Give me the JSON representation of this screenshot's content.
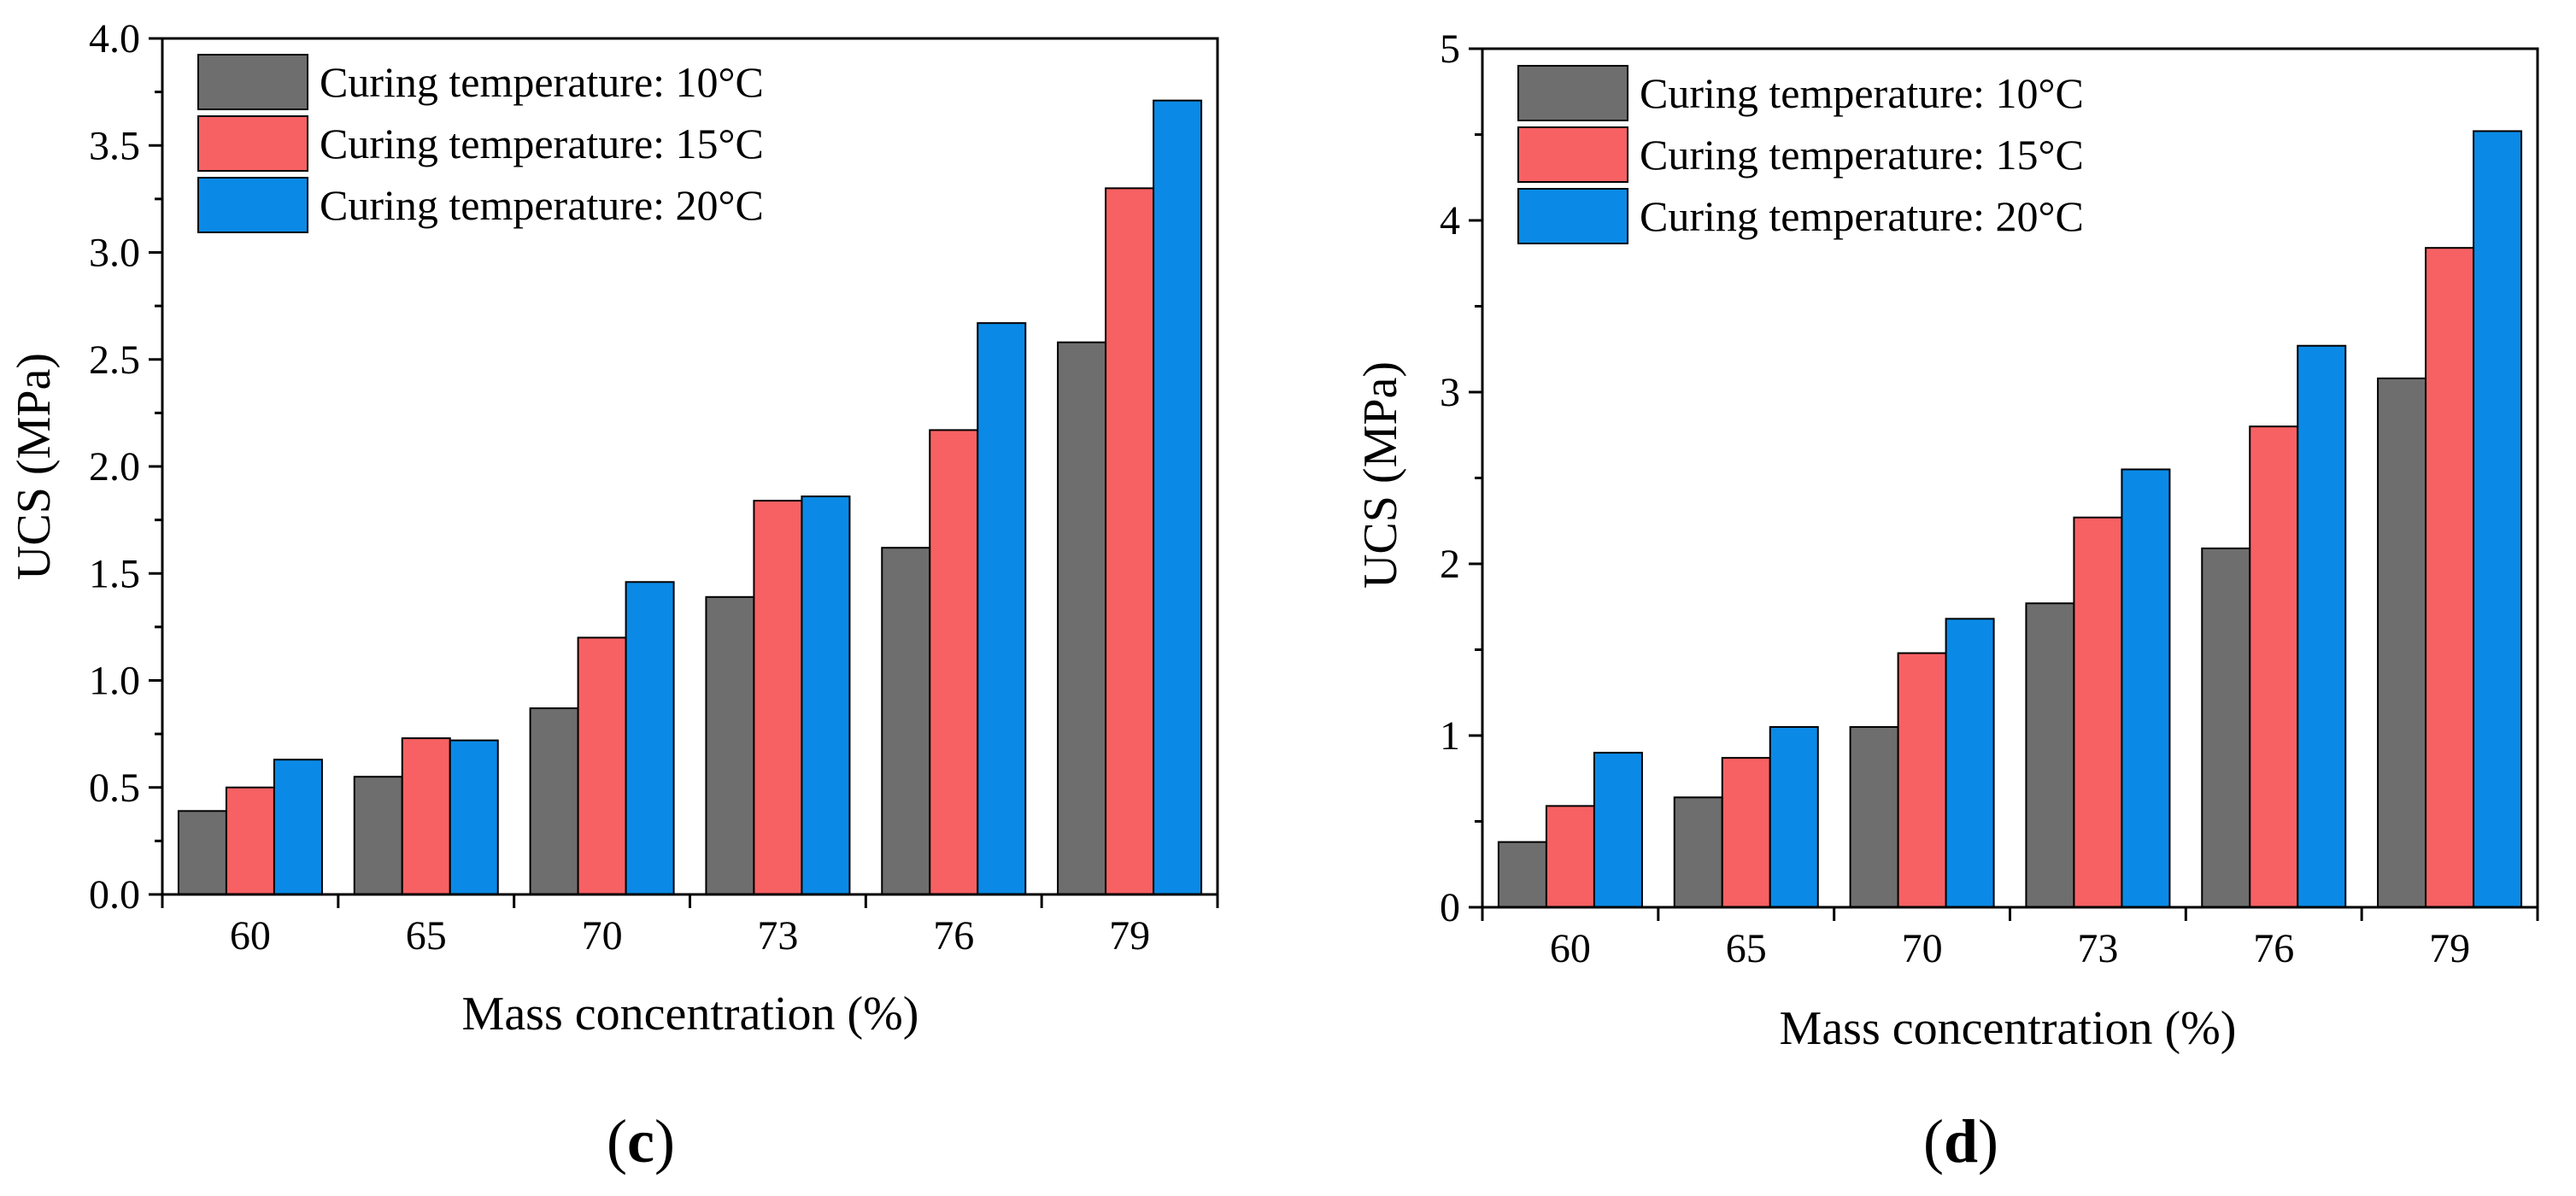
{
  "figure": {
    "panel_labels": [
      "(c)",
      "(d)"
    ]
  },
  "colors": {
    "series": [
      "#6e6e6e",
      "#f76163",
      "#0a8ae6"
    ],
    "bar_stroke": "#000000",
    "axis": "#000000"
  },
  "chart_data": [
    {
      "type": "bar",
      "panel": "(c)",
      "title": "",
      "xlabel": "Mass concentration (%)",
      "ylabel": "UCS (MPa)",
      "categories": [
        "60",
        "65",
        "70",
        "73",
        "76",
        "79"
      ],
      "ylim": [
        0,
        4.0
      ],
      "yticks": [
        "0.0",
        "0.5",
        "1.0",
        "1.5",
        "2.0",
        "2.5",
        "3.0",
        "3.5",
        "4.0"
      ],
      "grid": false,
      "legend": "top-left",
      "series": [
        {
          "name": "Curing temperature: 10°C",
          "values": [
            0.39,
            0.55,
            0.87,
            1.39,
            1.62,
            2.58
          ]
        },
        {
          "name": "Curing temperature: 15°C",
          "values": [
            0.5,
            0.73,
            1.2,
            1.84,
            2.17,
            3.3
          ]
        },
        {
          "name": "Curing temperature: 20°C",
          "values": [
            0.63,
            0.72,
            1.46,
            1.86,
            2.67,
            3.71
          ]
        }
      ]
    },
    {
      "type": "bar",
      "panel": "(d)",
      "title": "",
      "xlabel": "Mass concentration (%)",
      "ylabel": "UCS (MPa)",
      "categories": [
        "60",
        "65",
        "70",
        "73",
        "76",
        "79"
      ],
      "ylim": [
        0,
        5
      ],
      "yticks": [
        "0",
        "1",
        "2",
        "3",
        "4",
        "5"
      ],
      "grid": false,
      "legend": "top-left",
      "series": [
        {
          "name": "Curing temperature: 10°C",
          "values": [
            0.38,
            0.64,
            1.05,
            1.77,
            2.09,
            3.08
          ]
        },
        {
          "name": "Curing temperature: 15°C",
          "values": [
            0.59,
            0.87,
            1.48,
            2.27,
            2.8,
            3.84
          ]
        },
        {
          "name": "Curing temperature: 20°C",
          "values": [
            0.9,
            1.05,
            1.68,
            2.55,
            3.27,
            4.52
          ]
        }
      ]
    }
  ]
}
